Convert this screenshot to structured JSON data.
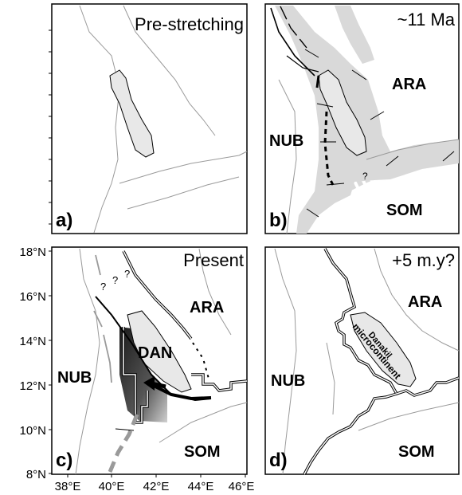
{
  "panels": {
    "a": {
      "letter": "a)",
      "title": "Pre-stretching"
    },
    "b": {
      "letter": "b)",
      "title": "~11 Ma",
      "plates": [
        "ARA",
        "NUB",
        "SOM"
      ],
      "question": "?"
    },
    "c": {
      "letter": "c)",
      "title": "Present",
      "plates": [
        "ARA",
        "NUB",
        "SOM",
        "DAN"
      ],
      "questions": [
        "?",
        "?",
        "?"
      ]
    },
    "d": {
      "letter": "d)",
      "title": "+5 m.y?",
      "plates": [
        "ARA",
        "NUB",
        "SOM"
      ],
      "block_label_1": "Danakil",
      "block_label_2": "microcontinent"
    }
  },
  "axes": {
    "y_ticks": [
      "18°N",
      "16°N",
      "14°N",
      "12°N",
      "10°N",
      "8°N"
    ],
    "x_ticks": [
      "38°E",
      "40°E",
      "42°E",
      "44°E",
      "46°E"
    ]
  },
  "colors": {
    "frame": "#000000",
    "coast": "#9a9a9a",
    "block_fill": "#e8e8e8",
    "rift_fill": "#d9d9d9",
    "dark_rift": "#3a3a3a"
  }
}
